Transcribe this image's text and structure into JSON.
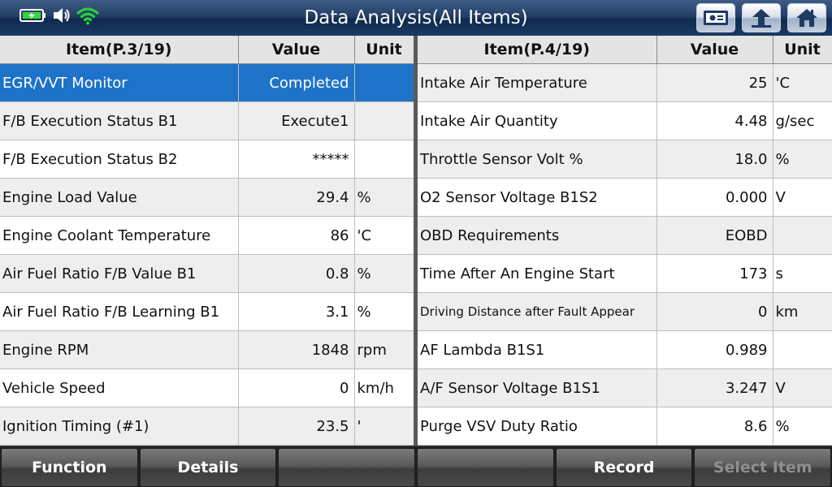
{
  "header": {
    "title": "Data Analysis(All Items)",
    "status_icons": [
      "battery-charging-icon",
      "speaker-icon",
      "wifi-icon"
    ],
    "buttons": [
      "screenshot-icon",
      "back-icon",
      "home-icon"
    ]
  },
  "left_table": {
    "headers": {
      "item": "Item(P.3/19)",
      "value": "Value",
      "unit": "Unit"
    },
    "rows": [
      {
        "item": "EGR/VVT Monitor",
        "value": "Completed",
        "unit": ""
      },
      {
        "item": "F/B Execution Status B1",
        "value": "Execute1",
        "unit": ""
      },
      {
        "item": "F/B Execution Status B2",
        "value": "*****",
        "unit": ""
      },
      {
        "item": "Engine Load Value",
        "value": "29.4",
        "unit": "%"
      },
      {
        "item": "Engine Coolant Temperature",
        "value": "86",
        "unit": "'C"
      },
      {
        "item": "Air Fuel Ratio F/B Value B1",
        "value": "0.8",
        "unit": "%"
      },
      {
        "item": "Air Fuel Ratio F/B Learning B1",
        "value": "3.1",
        "unit": "%"
      },
      {
        "item": "Engine RPM",
        "value": "1848",
        "unit": "rpm"
      },
      {
        "item": "Vehicle Speed",
        "value": "0",
        "unit": "km/h"
      },
      {
        "item": "Ignition Timing (#1)",
        "value": "23.5",
        "unit": "'"
      }
    ]
  },
  "right_table": {
    "headers": {
      "item": "Item(P.4/19)",
      "value": "Value",
      "unit": "Unit"
    },
    "rows": [
      {
        "item": "Intake Air Temperature",
        "value": "25",
        "unit": "'C"
      },
      {
        "item": "Intake Air Quantity",
        "value": "4.48",
        "unit": "g/sec"
      },
      {
        "item": "Throttle Sensor Volt %",
        "value": "18.0",
        "unit": "%"
      },
      {
        "item": "O2 Sensor Voltage B1S2",
        "value": "0.000",
        "unit": "V"
      },
      {
        "item": "OBD Requirements",
        "value": "EOBD",
        "unit": ""
      },
      {
        "item": "Time After An Engine Start",
        "value": "173",
        "unit": "s"
      },
      {
        "item": "Driving Distance after Fault Appear",
        "value": "0",
        "unit": "km"
      },
      {
        "item": "AF Lambda B1S1",
        "value": "0.989",
        "unit": ""
      },
      {
        "item": "A/F Sensor Voltage B1S1",
        "value": "3.247",
        "unit": "V"
      },
      {
        "item": "Purge VSV Duty Ratio",
        "value": "8.6",
        "unit": "%"
      }
    ]
  },
  "bottom_bar": {
    "function": "Function",
    "details": "Details",
    "empty1": "",
    "empty2": "",
    "record": "Record",
    "select_item": "Select Item"
  },
  "colors": {
    "selected_row": "#1e73c8",
    "header_bar": "#1c3a63",
    "wifi": "#2bd13a",
    "battery": "#39d63f"
  }
}
